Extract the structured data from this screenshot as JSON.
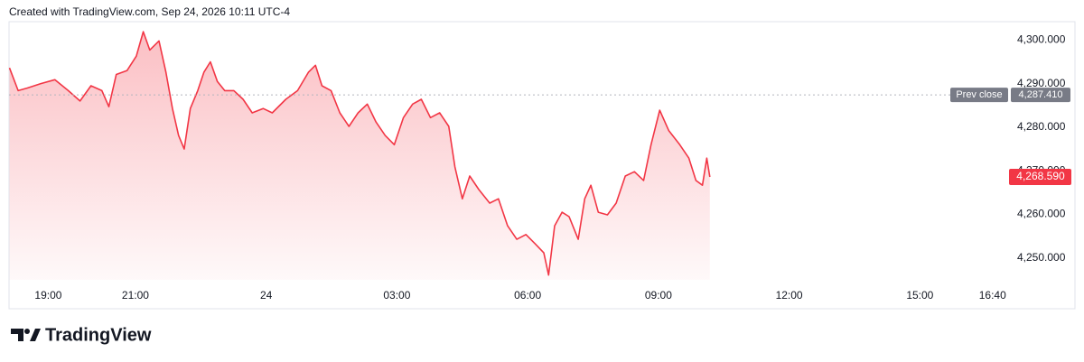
{
  "header": {
    "text": "Created with TradingView.com, Sep 24, 2026 10:11 UTC-4"
  },
  "footer": {
    "brand": "TradingView"
  },
  "chart_data": {
    "type": "line",
    "color": "#f23645",
    "x": [
      -5.89,
      -5.69,
      -5.48,
      -5.17,
      -4.85,
      -4.54,
      -4.27,
      -4.02,
      -3.77,
      -3.61,
      -3.44,
      -3.19,
      -2.98,
      -2.82,
      -2.67,
      -2.46,
      -2.3,
      -2.15,
      -2.01,
      -1.88,
      -1.74,
      -1.57,
      -1.43,
      -1.28,
      -1.12,
      -0.95,
      -0.74,
      -0.53,
      -0.32,
      -0.07,
      0.14,
      0.45,
      0.72,
      0.97,
      1.13,
      1.28,
      1.49,
      1.69,
      1.9,
      2.11,
      2.32,
      2.52,
      2.73,
      2.94,
      3.15,
      3.36,
      3.56,
      3.77,
      3.98,
      4.19,
      4.33,
      4.5,
      4.67,
      4.88,
      5.13,
      5.33,
      5.54,
      5.75,
      5.96,
      6.17,
      6.37,
      6.48,
      6.62,
      6.79,
      6.95,
      7.16,
      7.31,
      7.45,
      7.62,
      7.83,
      8.03,
      8.24,
      8.45,
      8.66,
      8.83,
      9.03,
      9.24,
      9.49,
      9.7,
      9.86,
      10.01,
      10.11,
      10.18
    ],
    "values": [
      4293.6,
      4288.4,
      4289,
      4290,
      4290.9,
      4288.4,
      4286,
      4289.5,
      4288.4,
      4284.7,
      4292.1,
      4293,
      4296.3,
      4301.9,
      4297.7,
      4299.8,
      4292.6,
      4284.3,
      4278.1,
      4275,
      4284.3,
      4288.4,
      4292.6,
      4295,
      4290.5,
      4288.4,
      4288.4,
      4286.4,
      4283.3,
      4284.3,
      4283.3,
      4286.4,
      4288.4,
      4292.6,
      4294.2,
      4289.5,
      4288.4,
      4283.3,
      4280.2,
      4283.3,
      4285.3,
      4281.2,
      4278.1,
      4276,
      4282.2,
      4285.3,
      4286.4,
      4282.2,
      4283.3,
      4280.2,
      4270.9,
      4263.6,
      4268.8,
      4265.7,
      4262.6,
      4263.6,
      4257.4,
      4254.3,
      4255.4,
      4253.3,
      4251.2,
      4246.1,
      4257.4,
      4260.5,
      4259.5,
      4254.3,
      4263.6,
      4266.7,
      4260.5,
      4259.9,
      4262.6,
      4268.8,
      4269.8,
      4267.8,
      4276,
      4283.9,
      4279.2,
      4276,
      4272.9,
      4267.8,
      4266.7,
      4272.9,
      4268.59
    ],
    "xlim": [
      -5.9,
      16.9
    ],
    "ylim": [
      4245,
      4304
    ],
    "xticks": [
      {
        "value": -5,
        "label": "19:00"
      },
      {
        "value": -3,
        "label": "21:00"
      },
      {
        "value": 0,
        "label": "24"
      },
      {
        "value": 3,
        "label": "03:00"
      },
      {
        "value": 6,
        "label": "06:00"
      },
      {
        "value": 9,
        "label": "09:00"
      },
      {
        "value": 12,
        "label": "12:00"
      },
      {
        "value": 15,
        "label": "15:00"
      },
      {
        "value": 16.667,
        "label": "16:40"
      }
    ],
    "yticks": [
      {
        "value": 4250,
        "label": "4,250.000"
      },
      {
        "value": 4260,
        "label": "4,260.000"
      },
      {
        "value": 4270,
        "label": "4,270.000"
      },
      {
        "value": 4280,
        "label": "4,280.000"
      },
      {
        "value": 4290,
        "label": "4,290.000"
      },
      {
        "value": 4300,
        "label": "4,300.000"
      }
    ],
    "prev_close": {
      "name": "Prev close",
      "value": 4287.41,
      "label": "4,287.410"
    },
    "last_price": {
      "value": 4268.59,
      "label": "4,268.590"
    }
  }
}
